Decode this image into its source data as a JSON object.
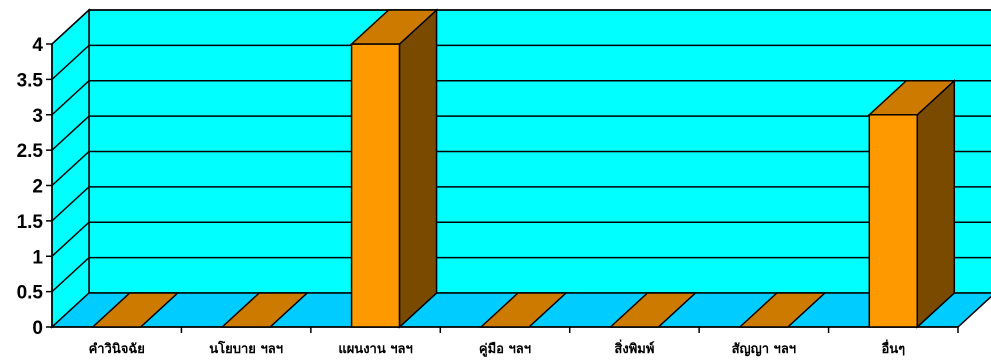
{
  "chart_data": {
    "type": "bar",
    "title": "",
    "xlabel": "",
    "ylabel": "",
    "categories": [
      "คำวินิจฉัย",
      "นโยบาย ฯลฯ",
      "แผนงาน ฯลฯ",
      "คู่มือ ฯลฯ",
      "สิ่งพิมพ์",
      "สัญญา ฯลฯ",
      "อื่นๆ"
    ],
    "values": [
      0,
      0,
      4,
      0,
      0,
      0,
      3
    ],
    "ylim": [
      0,
      4
    ],
    "yticks": [
      "0",
      "0.5",
      "1",
      "1.5",
      "2",
      "2.5",
      "3",
      "3.5",
      "4"
    ],
    "grid": true,
    "legend": "none",
    "style": "3d-column"
  },
  "colors": {
    "wall": "#00FFFF",
    "floor": "#00CCFF",
    "bar_front": "#FF9900",
    "bar_top": "#CC7A00",
    "bar_side": "#7A4A00",
    "lines": "#000000"
  }
}
